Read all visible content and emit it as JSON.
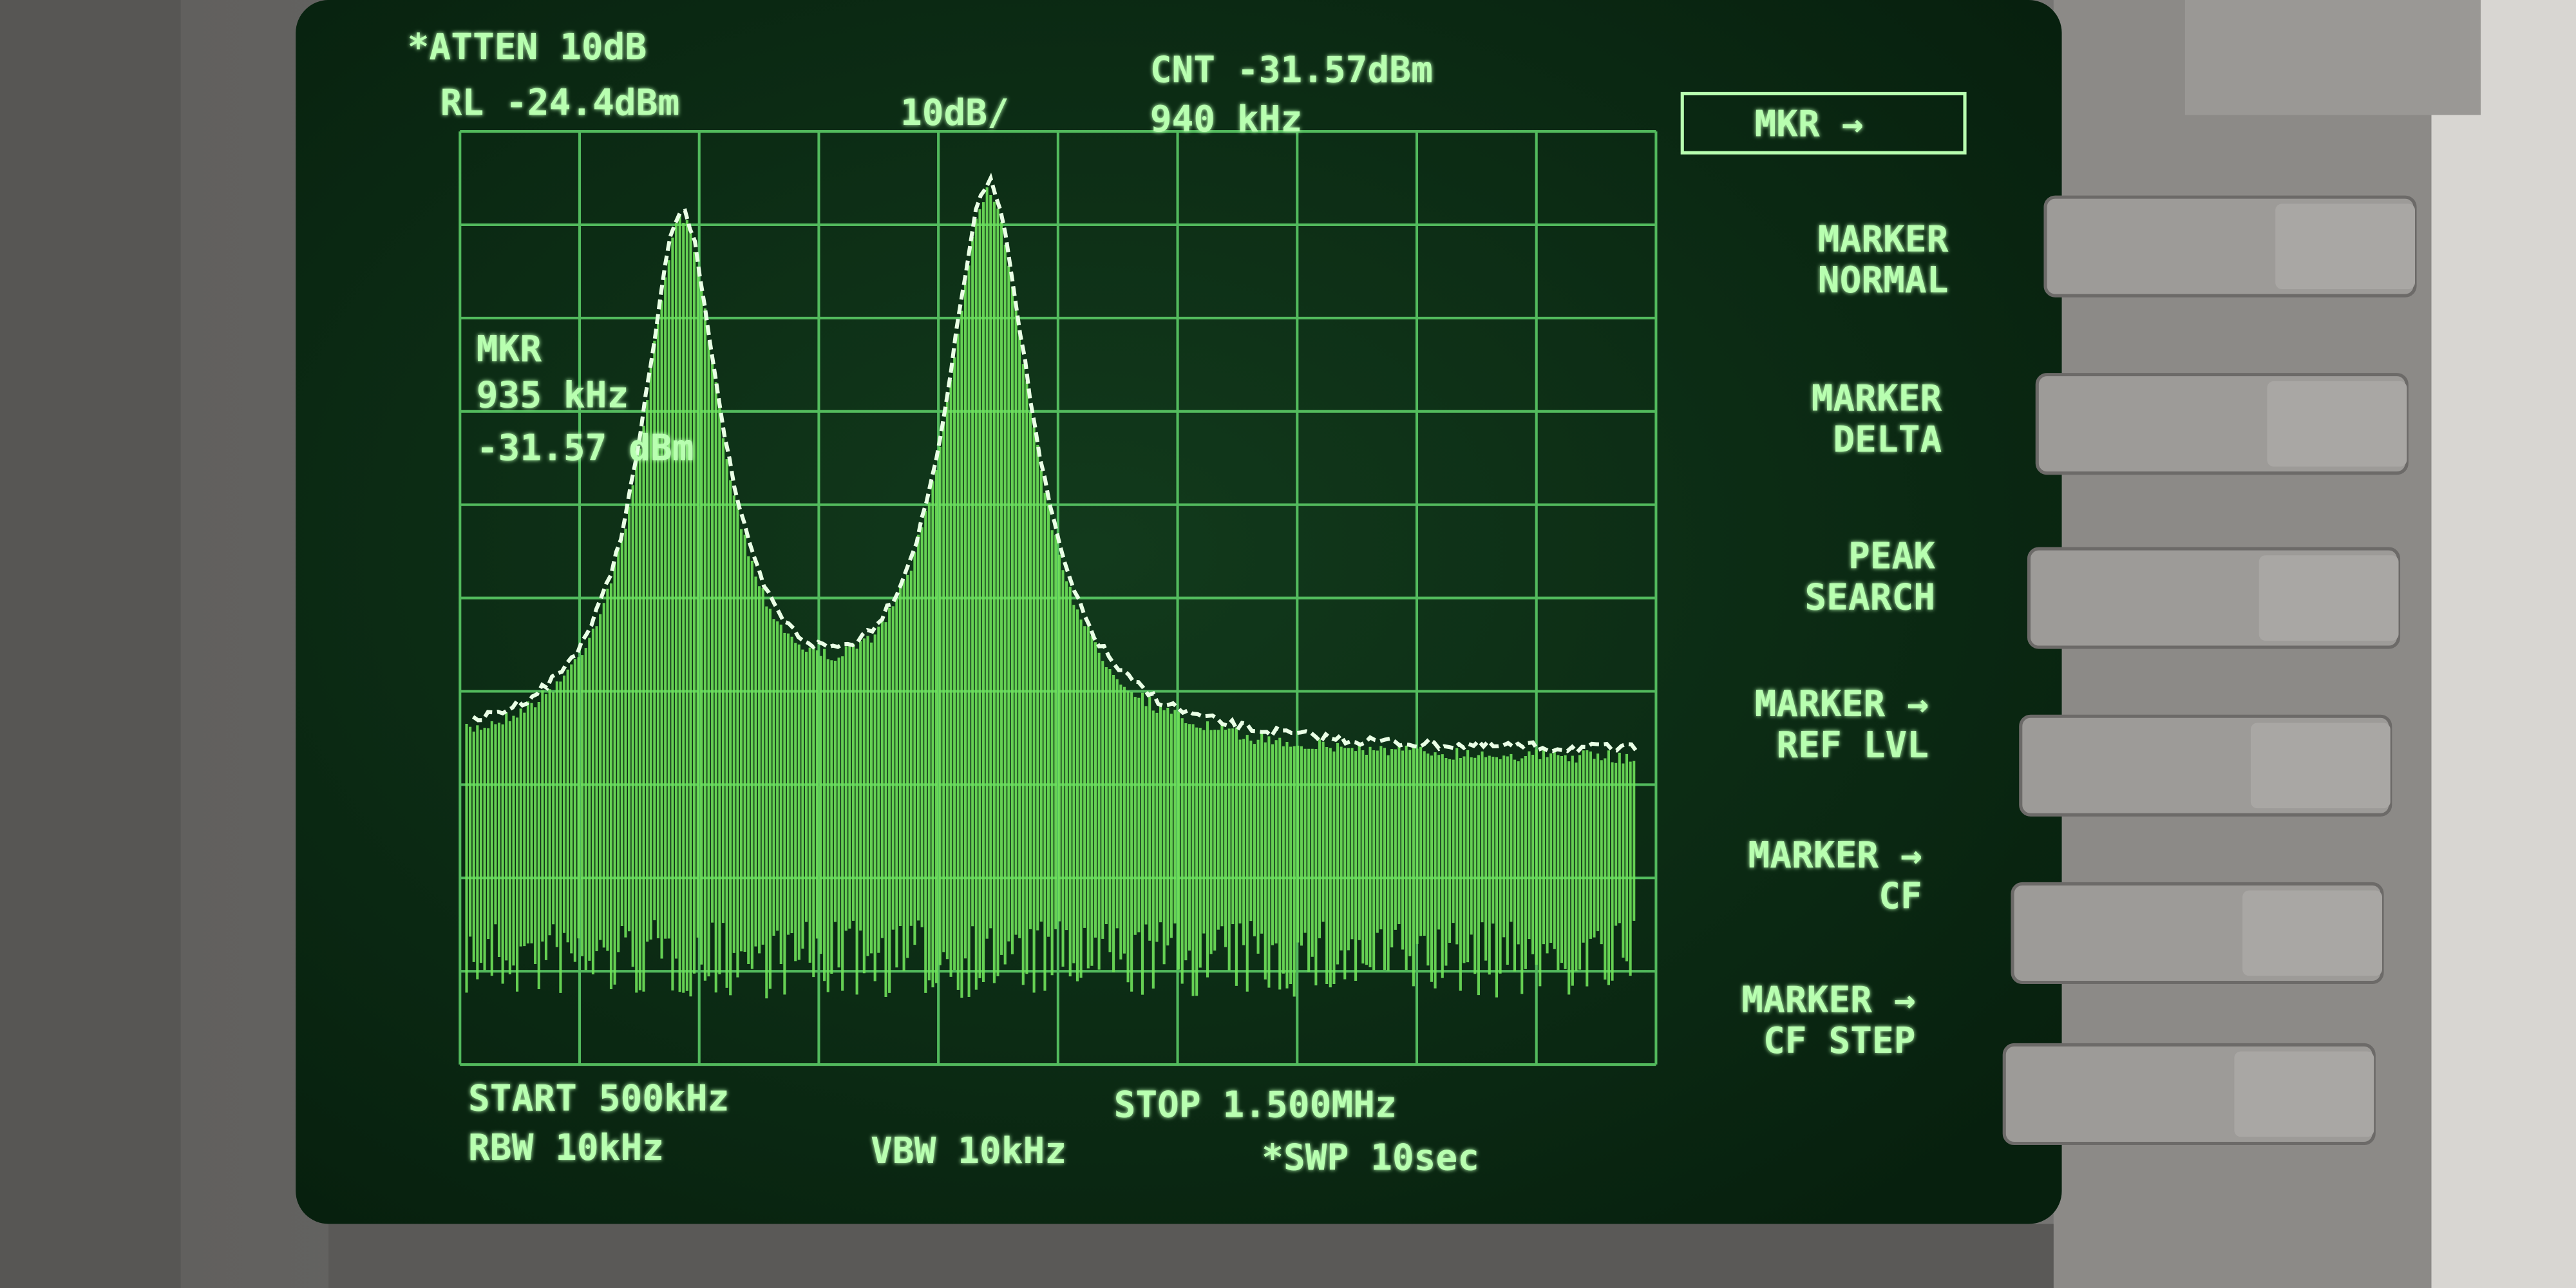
{
  "header": {
    "atten": "*ATTEN 10dB",
    "ref_level": "RL -24.4dBm",
    "scale": "10dB/",
    "counter_level": "CNT -31.57dBm",
    "counter_freq": "940 kHz"
  },
  "menu_title": "MKR →",
  "softkeys": [
    {
      "lines": [
        "MARKER",
        "NORMAL"
      ]
    },
    {
      "lines": [
        "MARKER",
        "DELTA"
      ]
    },
    {
      "lines": [
        "PEAK",
        "SEARCH"
      ]
    },
    {
      "lines": [
        "MARKER →",
        "REF LVL"
      ]
    },
    {
      "lines": [
        "MARKER →",
        "CF"
      ]
    },
    {
      "lines": [
        "MARKER →",
        "CF STEP"
      ]
    }
  ],
  "marker": {
    "label": "MKR",
    "freq": "935 kHz",
    "level": "-31.57 dBm"
  },
  "footer": {
    "start": "START 500kHz",
    "stop": "STOP 1.500MHz",
    "rbw": "RBW 10kHz",
    "vbw": "VBW 10kHz",
    "sweep": "*SWP 10sec"
  }
}
